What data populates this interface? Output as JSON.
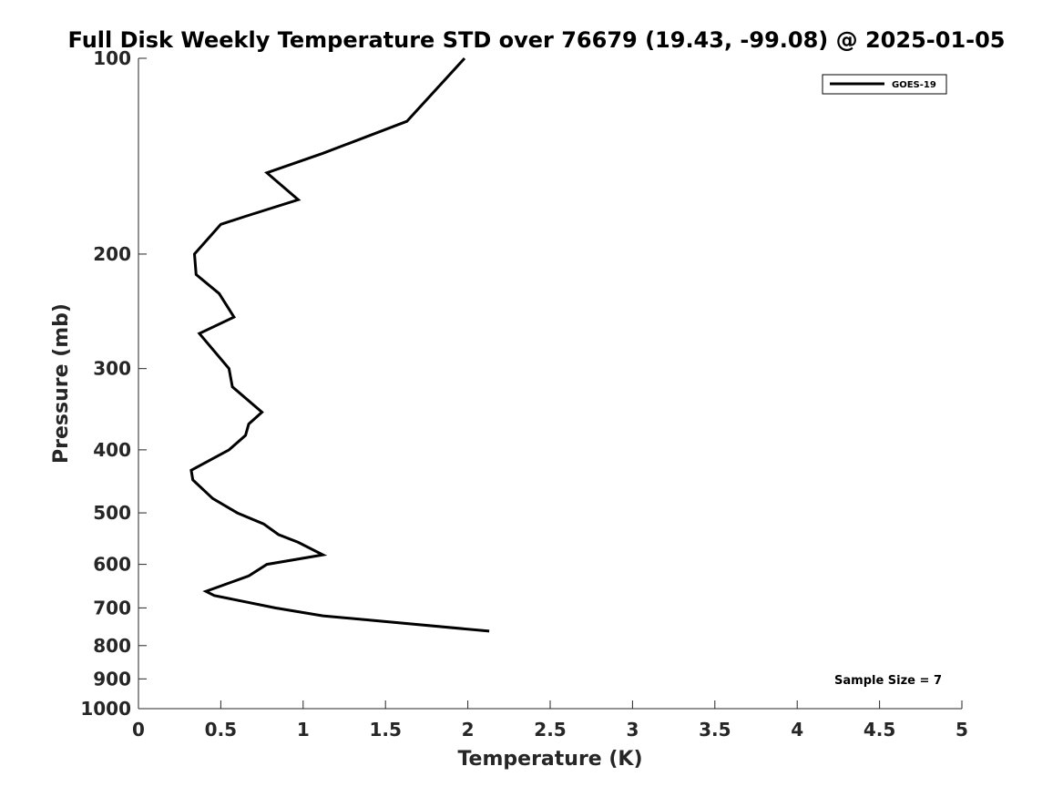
{
  "chart_data": {
    "type": "line",
    "title": "Full Disk Weekly Temperature STD over 76679 (19.43, -99.08) @ 2025-01-05",
    "xlabel": "Temperature (K)",
    "ylabel": "Pressure (mb)",
    "xlim": [
      0,
      5
    ],
    "ylim": [
      100,
      1000
    ],
    "y_scale": "log",
    "y_reversed": true,
    "grid": false,
    "legend_position": "top-right",
    "x_ticks": [
      "0",
      "0.5",
      "1",
      "1.5",
      "2",
      "2.5",
      "3",
      "3.5",
      "4",
      "4.5",
      "5"
    ],
    "y_ticks": [
      "100",
      "200",
      "300",
      "400",
      "500",
      "600",
      "700",
      "800",
      "900",
      "1000"
    ],
    "series": [
      {
        "name": "GOES-19",
        "color": "#000000",
        "points": [
          {
            "x": 1.98,
            "y": 100
          },
          {
            "x": 1.63,
            "y": 125
          },
          {
            "x": 1.12,
            "y": 140
          },
          {
            "x": 0.78,
            "y": 150
          },
          {
            "x": 0.97,
            "y": 165
          },
          {
            "x": 0.65,
            "y": 175
          },
          {
            "x": 0.5,
            "y": 180
          },
          {
            "x": 0.34,
            "y": 200
          },
          {
            "x": 0.35,
            "y": 215
          },
          {
            "x": 0.49,
            "y": 230
          },
          {
            "x": 0.58,
            "y": 250
          },
          {
            "x": 0.37,
            "y": 265
          },
          {
            "x": 0.55,
            "y": 300
          },
          {
            "x": 0.57,
            "y": 320
          },
          {
            "x": 0.75,
            "y": 350
          },
          {
            "x": 0.67,
            "y": 365
          },
          {
            "x": 0.65,
            "y": 380
          },
          {
            "x": 0.55,
            "y": 400
          },
          {
            "x": 0.32,
            "y": 430
          },
          {
            "x": 0.33,
            "y": 445
          },
          {
            "x": 0.45,
            "y": 475
          },
          {
            "x": 0.6,
            "y": 500
          },
          {
            "x": 0.76,
            "y": 520
          },
          {
            "x": 0.85,
            "y": 540
          },
          {
            "x": 0.97,
            "y": 555
          },
          {
            "x": 1.12,
            "y": 580
          },
          {
            "x": 0.78,
            "y": 600
          },
          {
            "x": 0.67,
            "y": 625
          },
          {
            "x": 0.41,
            "y": 660
          },
          {
            "x": 0.46,
            "y": 670
          },
          {
            "x": 0.83,
            "y": 700
          },
          {
            "x": 1.12,
            "y": 720
          },
          {
            "x": 2.13,
            "y": 760
          }
        ]
      }
    ],
    "annotations": [
      {
        "text": "Sample Size = 7",
        "position": "bottom-right"
      }
    ]
  }
}
